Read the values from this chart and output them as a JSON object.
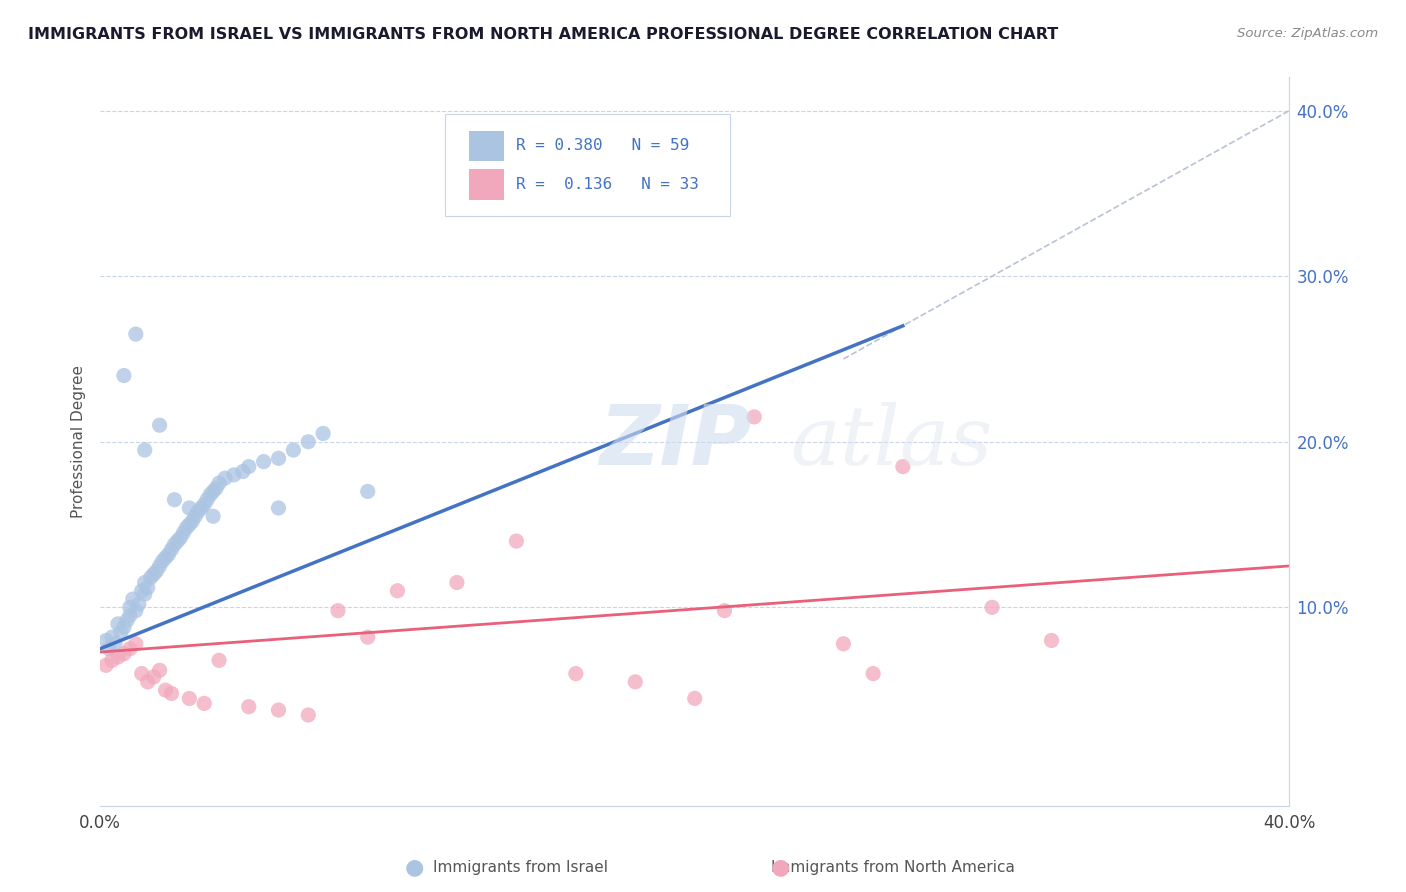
{
  "title": "IMMIGRANTS FROM ISRAEL VS IMMIGRANTS FROM NORTH AMERICA PROFESSIONAL DEGREE CORRELATION CHART",
  "source": "Source: ZipAtlas.com",
  "ylabel": "Professional Degree",
  "xlim": [
    0.0,
    0.4
  ],
  "ylim": [
    -0.02,
    0.42
  ],
  "color_blue": "#aac4e2",
  "color_pink": "#f2a8bc",
  "line_blue": "#4472c4",
  "line_pink": "#e8607a",
  "line_gray": "#b0bcd0",
  "watermark_zip": "ZIP",
  "watermark_atlas": "atlas",
  "legend_r1": "R = 0.380",
  "legend_n1": "N = 59",
  "legend_r2": "R =  0.136",
  "legend_n2": "N = 33",
  "israel_x": [
    0.002,
    0.003,
    0.004,
    0.005,
    0.006,
    0.007,
    0.008,
    0.009,
    0.01,
    0.01,
    0.011,
    0.012,
    0.013,
    0.014,
    0.015,
    0.015,
    0.016,
    0.017,
    0.018,
    0.019,
    0.02,
    0.021,
    0.022,
    0.023,
    0.024,
    0.025,
    0.026,
    0.027,
    0.028,
    0.029,
    0.03,
    0.031,
    0.032,
    0.033,
    0.034,
    0.035,
    0.036,
    0.037,
    0.038,
    0.039,
    0.04,
    0.042,
    0.045,
    0.048,
    0.05,
    0.055,
    0.06,
    0.065,
    0.07,
    0.075,
    0.008,
    0.012,
    0.015,
    0.02,
    0.025,
    0.03,
    0.038,
    0.06,
    0.09
  ],
  "israel_y": [
    0.08,
    0.075,
    0.082,
    0.078,
    0.09,
    0.085,
    0.088,
    0.092,
    0.095,
    0.1,
    0.105,
    0.098,
    0.102,
    0.11,
    0.108,
    0.115,
    0.112,
    0.118,
    0.12,
    0.122,
    0.125,
    0.128,
    0.13,
    0.132,
    0.135,
    0.138,
    0.14,
    0.142,
    0.145,
    0.148,
    0.15,
    0.152,
    0.155,
    0.158,
    0.16,
    0.162,
    0.165,
    0.168,
    0.17,
    0.172,
    0.175,
    0.178,
    0.18,
    0.182,
    0.185,
    0.188,
    0.19,
    0.195,
    0.2,
    0.205,
    0.24,
    0.265,
    0.195,
    0.21,
    0.165,
    0.16,
    0.155,
    0.16,
    0.17
  ],
  "na_x": [
    0.002,
    0.004,
    0.006,
    0.008,
    0.01,
    0.012,
    0.014,
    0.016,
    0.018,
    0.02,
    0.022,
    0.024,
    0.03,
    0.035,
    0.04,
    0.05,
    0.06,
    0.07,
    0.08,
    0.09,
    0.1,
    0.12,
    0.14,
    0.16,
    0.18,
    0.2,
    0.22,
    0.26,
    0.3,
    0.32,
    0.25,
    0.21,
    0.27
  ],
  "na_y": [
    0.065,
    0.068,
    0.07,
    0.072,
    0.075,
    0.078,
    0.06,
    0.055,
    0.058,
    0.062,
    0.05,
    0.048,
    0.045,
    0.042,
    0.068,
    0.04,
    0.038,
    0.035,
    0.098,
    0.082,
    0.11,
    0.115,
    0.14,
    0.06,
    0.055,
    0.045,
    0.215,
    0.06,
    0.1,
    0.08,
    0.078,
    0.098,
    0.185
  ]
}
